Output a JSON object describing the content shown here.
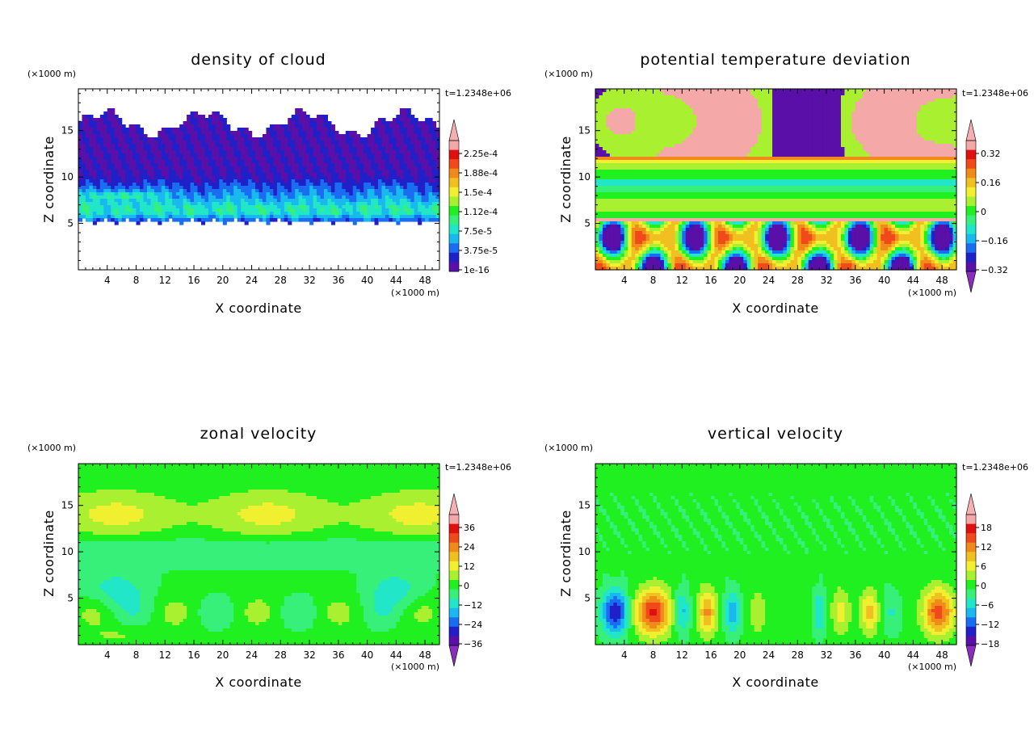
{
  "chart_data": [
    {
      "type": "heatmap",
      "title": "density of cloud",
      "xlabel": "X coordinate",
      "ylabel": "Z coordinate",
      "x_unit": "(×1000 m)",
      "y_unit": "(×1000 m)",
      "time": "t=1.2348e+06",
      "xlim": [
        0,
        50
      ],
      "ylim": [
        0,
        19.5
      ],
      "x_ticks": [
        4,
        8,
        12,
        16,
        20,
        24,
        28,
        32,
        36,
        40,
        44,
        48
      ],
      "y_ticks": [
        5,
        10,
        15
      ],
      "colorbar": {
        "labels": [
          "2.25e-4",
          "1.88e-4",
          "1.5e-4",
          "1.12e-4",
          "7.5e-5",
          "3.75e-5",
          "1e-16"
        ],
        "extend": "max"
      }
    },
    {
      "type": "heatmap",
      "title": "potential temperature deviation",
      "xlabel": "X coordinate",
      "ylabel": "Z coordinate",
      "x_unit": "(×1000 m)",
      "y_unit": "(×1000 m)",
      "time": "t=1.2348e+06",
      "xlim": [
        0,
        50
      ],
      "ylim": [
        0,
        19.5
      ],
      "x_ticks": [
        4,
        8,
        12,
        16,
        20,
        24,
        28,
        32,
        36,
        40,
        44,
        48
      ],
      "y_ticks": [
        5,
        10,
        15
      ],
      "colorbar": {
        "labels": [
          "0.32",
          "0.16",
          "0",
          "−0.16",
          "−0.32"
        ],
        "extend": "both"
      }
    },
    {
      "type": "heatmap",
      "title": "zonal velocity",
      "xlabel": "X coordinate",
      "ylabel": "Z coordinate",
      "x_unit": "(×1000 m)",
      "y_unit": "(×1000 m)",
      "time": "t=1.2348e+06",
      "xlim": [
        0,
        50
      ],
      "ylim": [
        0,
        19.5
      ],
      "x_ticks": [
        4,
        8,
        12,
        16,
        20,
        24,
        28,
        32,
        36,
        40,
        44,
        48
      ],
      "y_ticks": [
        5,
        10,
        15
      ],
      "colorbar": {
        "labels": [
          "36",
          "24",
          "12",
          "0",
          "−12",
          "−24",
          "−36"
        ],
        "extend": "both"
      }
    },
    {
      "type": "heatmap",
      "title": "vertical velocity",
      "xlabel": "X coordinate",
      "ylabel": "Z coordinate",
      "x_unit": "(×1000 m)",
      "y_unit": "(×1000 m)",
      "time": "t=1.2348e+06",
      "xlim": [
        0,
        50
      ],
      "ylim": [
        0,
        19.5
      ],
      "x_ticks": [
        4,
        8,
        12,
        16,
        20,
        24,
        28,
        32,
        36,
        40,
        44,
        48
      ],
      "y_ticks": [
        5,
        10,
        15
      ],
      "colorbar": {
        "labels": [
          "18",
          "12",
          "6",
          "0",
          "−6",
          "−12",
          "−18"
        ],
        "extend": "both"
      }
    }
  ],
  "colors": {
    "palette": [
      "#5a0fa8",
      "#2020c8",
      "#1a6cf0",
      "#19b9f0",
      "#22e6c8",
      "#36f07a",
      "#20f020",
      "#a8f030",
      "#f0f030",
      "#f0c020",
      "#f08a1a",
      "#f04a1a",
      "#e01010",
      "#f4a8a8"
    ],
    "over": "#f4b0b0",
    "under": "#8a2dbd",
    "frame": "#000000"
  }
}
